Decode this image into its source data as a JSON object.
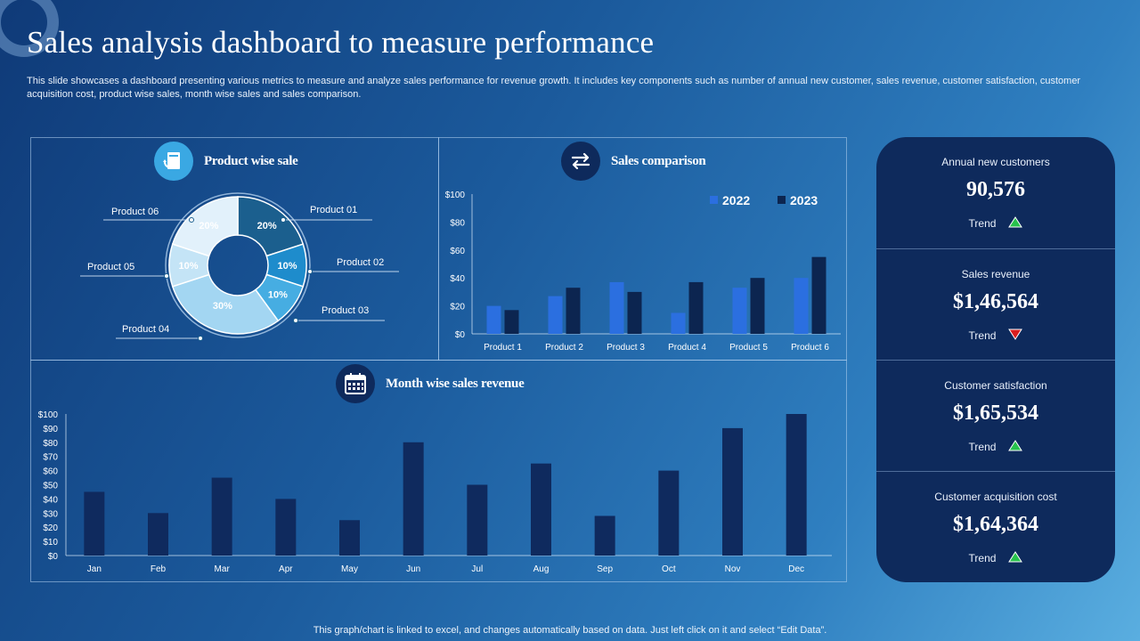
{
  "title": "Sales analysis dashboard to measure performance",
  "description": "This slide showcases a dashboard presenting various metrics to measure and analyze sales performance for revenue growth. It includes key components such as number of annual new customer, sales revenue, customer satisfaction, customer acquisition cost, product wise sales, month wise sales and sales comparison.",
  "footnote": "This graph/chart is linked to excel, and changes automatically based on data. Just left click on it and select “Edit Data”.",
  "sections": {
    "product_wise": "Product wise sale",
    "sales_comparison": "Sales comparison",
    "month_wise": "Month wise sales revenue"
  },
  "icons": {
    "product_wise": "document-refresh-icon",
    "sales_comparison": "swap-arrows-icon",
    "month_wise": "calendar-icon"
  },
  "colors": {
    "up": "#27c24c",
    "down": "#d91e1e",
    "series_2022": "#2b6fe0",
    "series_2023": "#0c2550",
    "month_bars": "#0f2a5e"
  },
  "kpis": [
    {
      "label": "Annual new customers",
      "value": "90,576",
      "trend_label": "Trend",
      "trend": "up"
    },
    {
      "label": "Sales revenue",
      "value": "$1,46,564",
      "trend_label": "Trend",
      "trend": "down"
    },
    {
      "label": "Customer satisfaction",
      "value": "$1,65,534",
      "trend_label": "Trend",
      "trend": "up"
    },
    {
      "label": "Customer acquisition cost",
      "value": "$1,64,364",
      "trend_label": "Trend",
      "trend": "up"
    }
  ],
  "chart_data": [
    {
      "type": "pie",
      "title": "Product wise sale",
      "categories": [
        "Product 01",
        "Product 02",
        "Product 03",
        "Product 04",
        "Product 05",
        "Product 06"
      ],
      "values": [
        20,
        10,
        10,
        30,
        10,
        20
      ],
      "value_labels": [
        "20%",
        "10%",
        "10%",
        "30%",
        "10%",
        "20%"
      ],
      "colors": [
        "#1b5f8e",
        "#1e8ccc",
        "#46ade2",
        "#a3d6f2",
        "#c4e4f6",
        "#e2f1fb"
      ]
    },
    {
      "type": "bar",
      "title": "Sales comparison",
      "categories": [
        "Product 1",
        "Product 2",
        "Product 3",
        "Product 4",
        "Product 5",
        "Product 6"
      ],
      "series": [
        {
          "name": "2022",
          "values": [
            20,
            27,
            37,
            15,
            33,
            40
          ]
        },
        {
          "name": "2023",
          "values": [
            17,
            33,
            30,
            37,
            40,
            55
          ]
        }
      ],
      "ylim": [
        0,
        100
      ],
      "yticks": [
        "$0",
        "$20",
        "$40",
        "$60",
        "$80",
        "$100"
      ],
      "legend": "top-right"
    },
    {
      "type": "bar",
      "title": "Month wise sales revenue",
      "categories": [
        "Jan",
        "Feb",
        "Mar",
        "Apr",
        "May",
        "Jun",
        "Jul",
        "Aug",
        "Sep",
        "Oct",
        "Nov",
        "Dec"
      ],
      "values": [
        45,
        30,
        55,
        40,
        25,
        80,
        50,
        65,
        28,
        60,
        90,
        100
      ],
      "ylim": [
        0,
        100
      ],
      "yticks": [
        "$0",
        "$10",
        "$20",
        "$30",
        "$40",
        "$50",
        "$60",
        "$70",
        "$80",
        "$90",
        "$100"
      ]
    }
  ]
}
